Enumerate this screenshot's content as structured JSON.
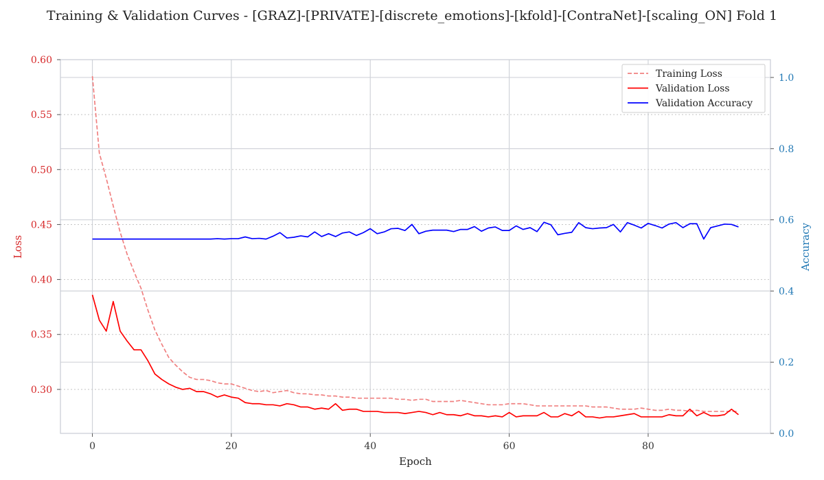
{
  "chart_data": {
    "type": "line",
    "title": "Training & Validation Curves - [GRAZ]-[PRIVATE]-[discrete_emotions]-[kfold]-[ContraNet]-[scaling_ON] Fold 1",
    "xlabel": "Epoch",
    "ylabel_left": "Loss",
    "ylabel_right": "Accuracy",
    "xlim": [
      -4.6,
      97.6
    ],
    "ylim_left": [
      0.26,
      0.6
    ],
    "ylim_right": [
      0.0,
      1.05
    ],
    "xticks": [
      0,
      20,
      40,
      60,
      80
    ],
    "yticks_left": [
      0.3,
      0.35,
      0.4,
      0.45,
      0.5,
      0.55,
      0.6
    ],
    "yticks_right": [
      0.0,
      0.2,
      0.4,
      0.6,
      0.8,
      1.0
    ],
    "legend_position": "top-right",
    "colors": {
      "left_axis": "#d62728",
      "right_axis": "#1f77b4",
      "training_loss": "#f08080",
      "validation_loss": "#ff0000",
      "validation_accuracy": "#0000ff"
    },
    "series": [
      {
        "name": "Training Loss",
        "axis": "left",
        "style": "dashed",
        "values": [
          0.585,
          0.515,
          0.492,
          0.467,
          0.443,
          0.423,
          0.407,
          0.392,
          0.372,
          0.354,
          0.341,
          0.329,
          0.322,
          0.316,
          0.311,
          0.309,
          0.309,
          0.308,
          0.306,
          0.305,
          0.305,
          0.303,
          0.301,
          0.299,
          0.298,
          0.299,
          0.297,
          0.298,
          0.299,
          0.297,
          0.296,
          0.296,
          0.295,
          0.295,
          0.294,
          0.294,
          0.293,
          0.293,
          0.292,
          0.292,
          0.292,
          0.292,
          0.292,
          0.292,
          0.291,
          0.291,
          0.29,
          0.291,
          0.291,
          0.289,
          0.289,
          0.289,
          0.289,
          0.29,
          0.289,
          0.288,
          0.287,
          0.286,
          0.286,
          0.286,
          0.287,
          0.287,
          0.287,
          0.286,
          0.285,
          0.285,
          0.285,
          0.285,
          0.285,
          0.285,
          0.285,
          0.285,
          0.284,
          0.284,
          0.284,
          0.283,
          0.282,
          0.282,
          0.282,
          0.283,
          0.282,
          0.281,
          0.281,
          0.282,
          0.281,
          0.281,
          0.28,
          0.281,
          0.28,
          0.28,
          0.28,
          0.28,
          0.28,
          0.28
        ]
      },
      {
        "name": "Validation Loss",
        "axis": "left",
        "style": "solid",
        "values": [
          0.386,
          0.363,
          0.353,
          0.38,
          0.353,
          0.344,
          0.336,
          0.336,
          0.326,
          0.314,
          0.309,
          0.305,
          0.302,
          0.3,
          0.301,
          0.298,
          0.298,
          0.296,
          0.293,
          0.295,
          0.293,
          0.292,
          0.288,
          0.287,
          0.287,
          0.286,
          0.286,
          0.285,
          0.287,
          0.286,
          0.284,
          0.284,
          0.282,
          0.283,
          0.282,
          0.287,
          0.281,
          0.282,
          0.282,
          0.28,
          0.28,
          0.28,
          0.279,
          0.279,
          0.279,
          0.278,
          0.279,
          0.28,
          0.279,
          0.277,
          0.279,
          0.277,
          0.277,
          0.276,
          0.278,
          0.276,
          0.276,
          0.275,
          0.276,
          0.275,
          0.279,
          0.275,
          0.276,
          0.276,
          0.276,
          0.279,
          0.275,
          0.275,
          0.278,
          0.276,
          0.28,
          0.275,
          0.275,
          0.274,
          0.275,
          0.275,
          0.276,
          0.277,
          0.278,
          0.275,
          0.275,
          0.275,
          0.275,
          0.277,
          0.276,
          0.276,
          0.282,
          0.276,
          0.279,
          0.276,
          0.276,
          0.277,
          0.282,
          0.277
        ]
      },
      {
        "name": "Validation Accuracy",
        "axis": "right",
        "style": "solid",
        "values": [
          0.546,
          0.546,
          0.546,
          0.546,
          0.546,
          0.546,
          0.546,
          0.546,
          0.546,
          0.546,
          0.546,
          0.546,
          0.546,
          0.546,
          0.546,
          0.546,
          0.546,
          0.546,
          0.547,
          0.546,
          0.547,
          0.547,
          0.552,
          0.547,
          0.548,
          0.546,
          0.554,
          0.564,
          0.549,
          0.551,
          0.555,
          0.552,
          0.566,
          0.553,
          0.561,
          0.553,
          0.563,
          0.566,
          0.556,
          0.564,
          0.575,
          0.561,
          0.566,
          0.575,
          0.576,
          0.57,
          0.587,
          0.561,
          0.568,
          0.571,
          0.571,
          0.571,
          0.567,
          0.573,
          0.573,
          0.581,
          0.568,
          0.577,
          0.58,
          0.57,
          0.57,
          0.583,
          0.573,
          0.578,
          0.567,
          0.593,
          0.586,
          0.558,
          0.562,
          0.565,
          0.592,
          0.578,
          0.575,
          0.577,
          0.578,
          0.587,
          0.566,
          0.592,
          0.585,
          0.577,
          0.59,
          0.584,
          0.577,
          0.588,
          0.592,
          0.578,
          0.589,
          0.589,
          0.546,
          0.578,
          0.583,
          0.588,
          0.587,
          0.58
        ]
      }
    ]
  }
}
